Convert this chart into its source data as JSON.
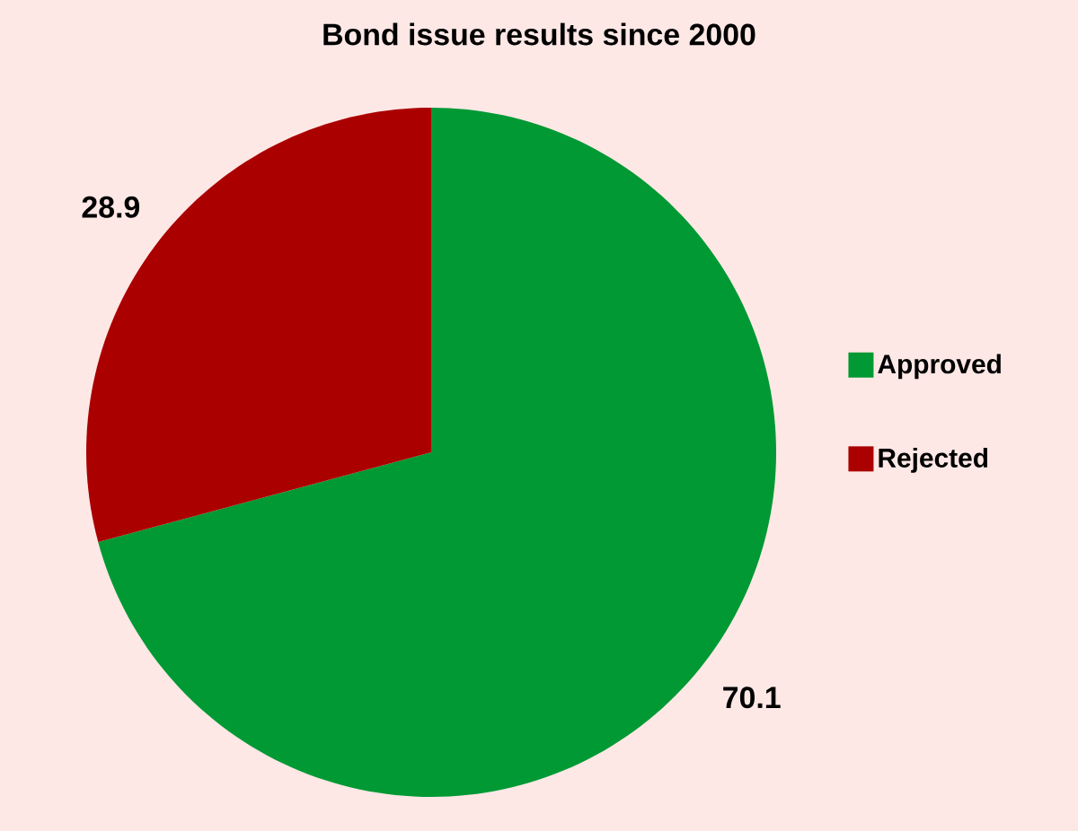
{
  "chart_data": {
    "type": "pie",
    "title": "Bond issue results since 2000",
    "categories": [
      "Approved",
      "Rejected"
    ],
    "values": [
      70.1,
      28.9
    ],
    "colors": [
      "#009933",
      "#aa0000"
    ],
    "data_labels": true,
    "legend": "right"
  }
}
